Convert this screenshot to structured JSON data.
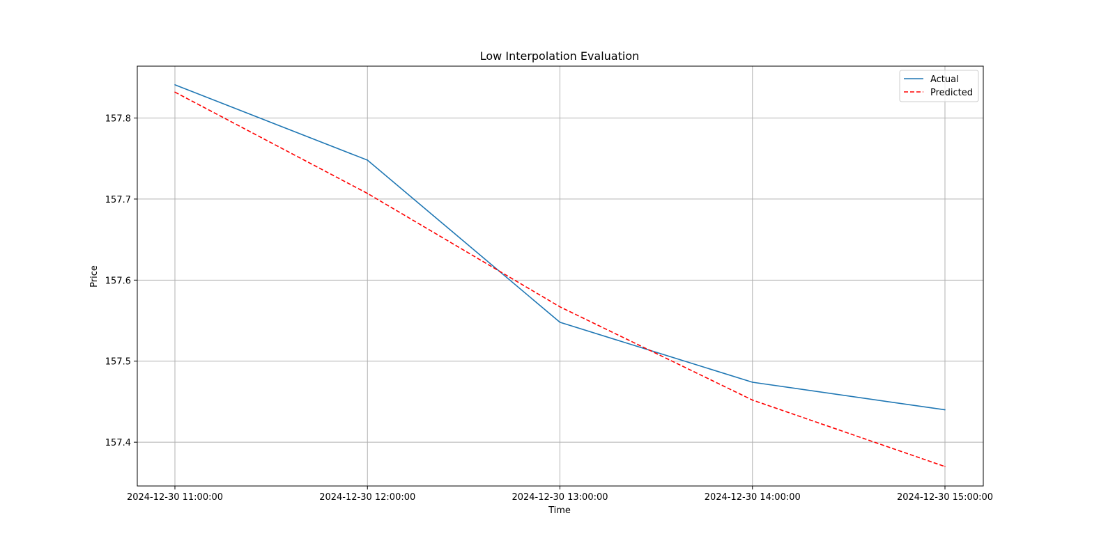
{
  "chart_data": {
    "type": "line",
    "title": "Low Interpolation Evaluation",
    "xlabel": "Time",
    "ylabel": "Price",
    "x": [
      "2024-12-30 11:00:00",
      "2024-12-30 12:00:00",
      "2024-12-30 13:00:00",
      "2024-12-30 14:00:00",
      "2024-12-30 15:00:00"
    ],
    "ylim": [
      157.346,
      157.864
    ],
    "yticks": [
      "157.4",
      "157.5",
      "157.6",
      "157.7",
      "157.8"
    ],
    "grid": true,
    "legend_position": "top-right",
    "series": [
      {
        "name": "Actual",
        "values": [
          157.841,
          157.748,
          157.548,
          157.474,
          157.44
        ],
        "color": "#1f77b4",
        "style": "solid"
      },
      {
        "name": "Predicted",
        "values": [
          157.832,
          157.707,
          157.567,
          157.452,
          157.37
        ],
        "color": "#ff0000",
        "style": "dashed"
      }
    ]
  }
}
